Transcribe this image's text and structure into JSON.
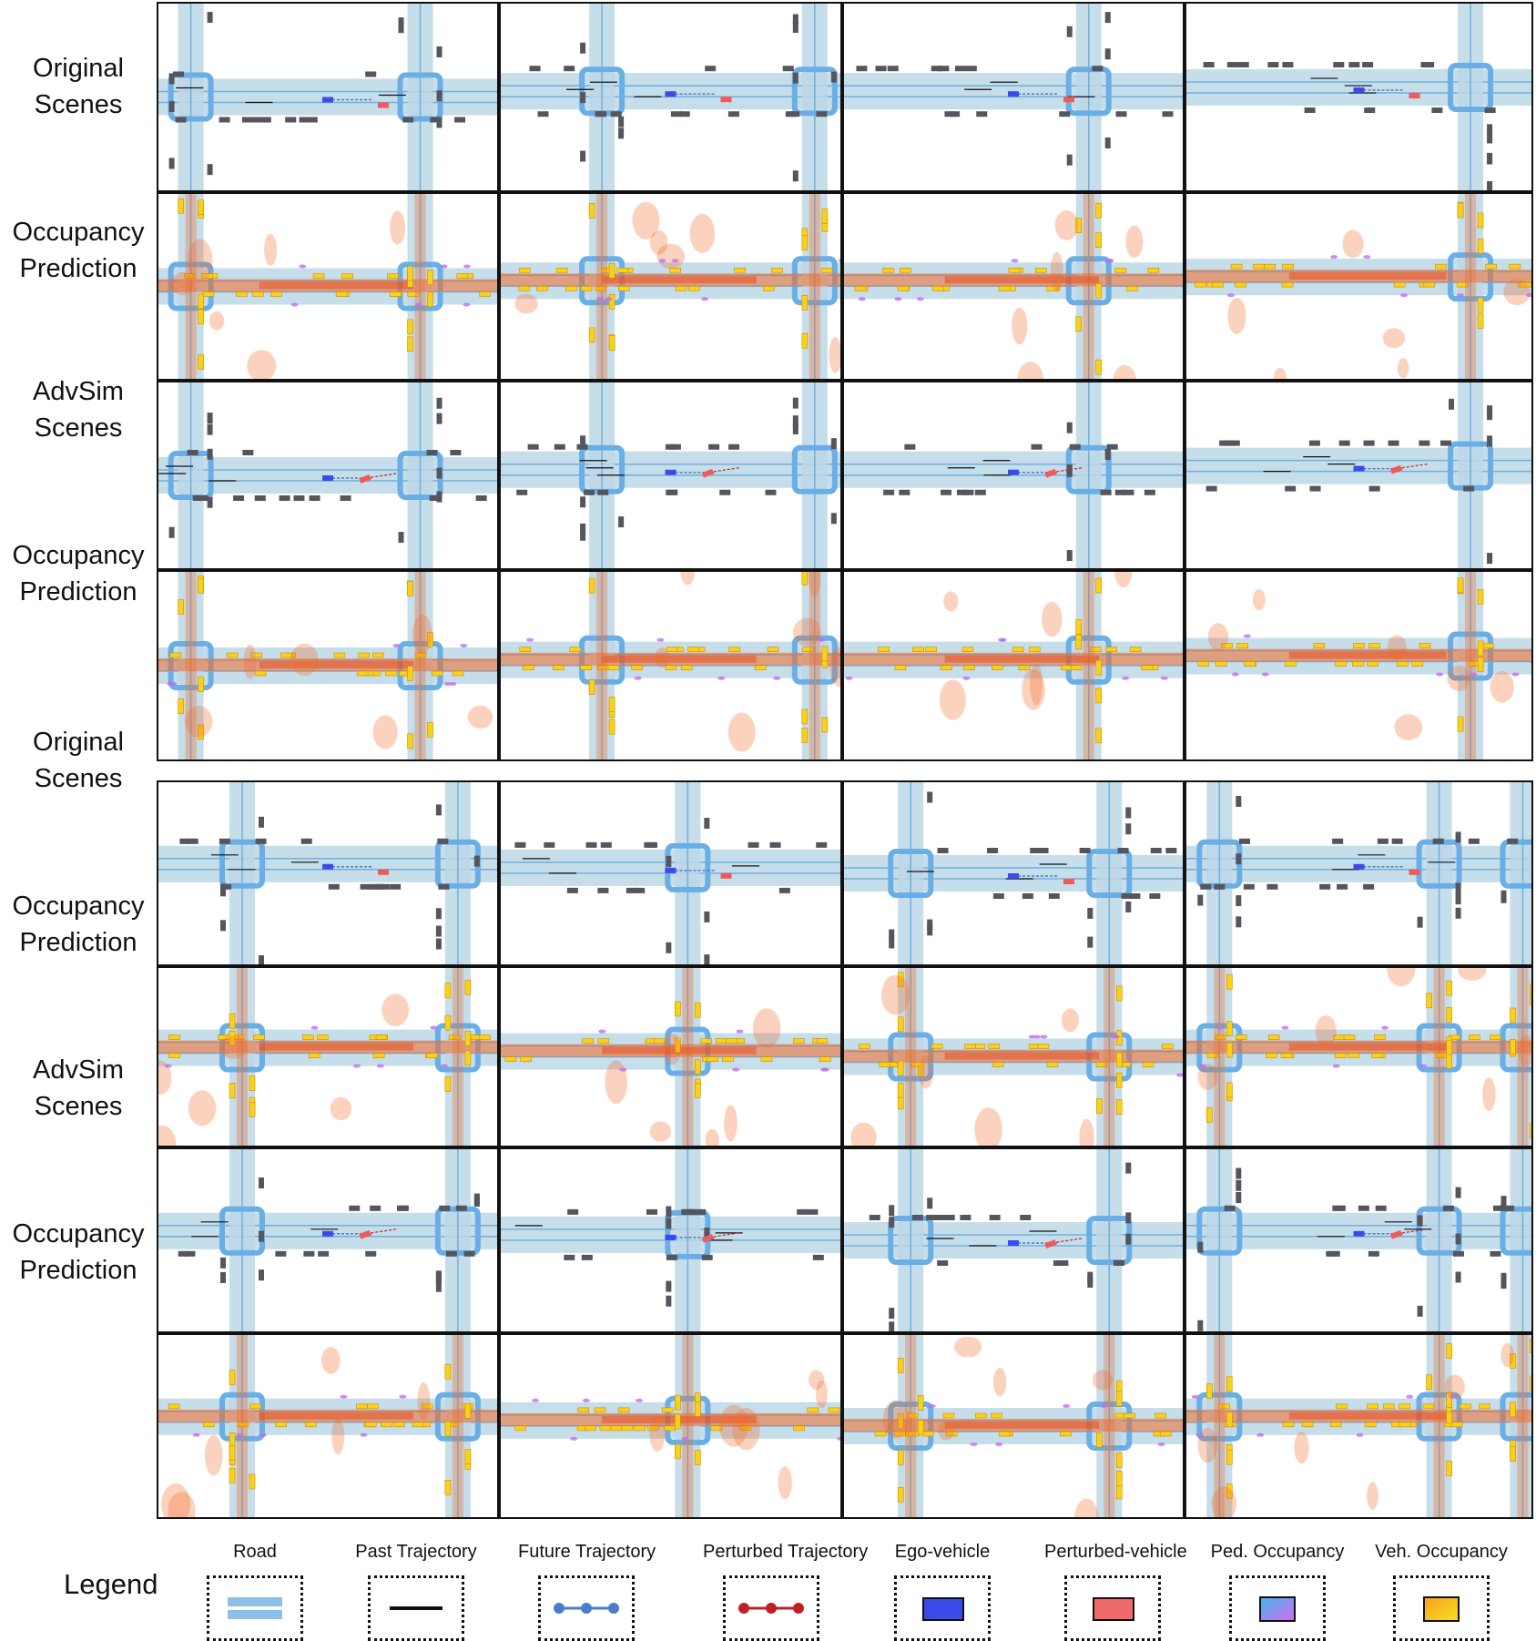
{
  "row_labels": [
    [
      "Original",
      "Scenes"
    ],
    [
      "Occupancy",
      "Prediction"
    ],
    [
      "AdvSim",
      "Scenes"
    ],
    [
      "Occupancy",
      "Prediction"
    ],
    [
      "Original",
      "Scenes"
    ],
    [
      "Occupancy",
      "Prediction"
    ],
    [
      "AdvSim",
      "Scenes"
    ],
    [
      "Occupancy",
      "Prediction"
    ]
  ],
  "legend": {
    "title": "Legend",
    "items": [
      {
        "label": "Road",
        "icon": "road-icon"
      },
      {
        "label": "Past Trajectory",
        "icon": "past-trajectory-icon"
      },
      {
        "label": "Future Trajectory",
        "icon": "future-trajectory-icon"
      },
      {
        "label": "Perturbed Trajectory",
        "icon": "perturbed-trajectory-icon"
      },
      {
        "label": "Ego-vehicle",
        "icon": "ego-vehicle-icon"
      },
      {
        "label": "Perturbed-vehicle",
        "icon": "perturbed-vehicle-icon"
      },
      {
        "label": "Ped. Occupancy",
        "icon": "ped-occupancy-icon"
      },
      {
        "label": "Veh. Occupancy",
        "icon": "veh-occupancy-icon"
      }
    ]
  },
  "colors": {
    "road": "#bcd7e6",
    "lane": "#5aa6dc",
    "crosswalk": "#6aaee6",
    "parked_vehicle": "#55555d",
    "ego": "#3a4bea",
    "perturbed": "#f05a5a",
    "future_traj": "#4a7cc8",
    "perturbed_traj": "#c0202a",
    "veh_occ": "#f8d21a",
    "veh_occ_heat": "#f26a28",
    "ped_occ": "#c26ef0"
  }
}
